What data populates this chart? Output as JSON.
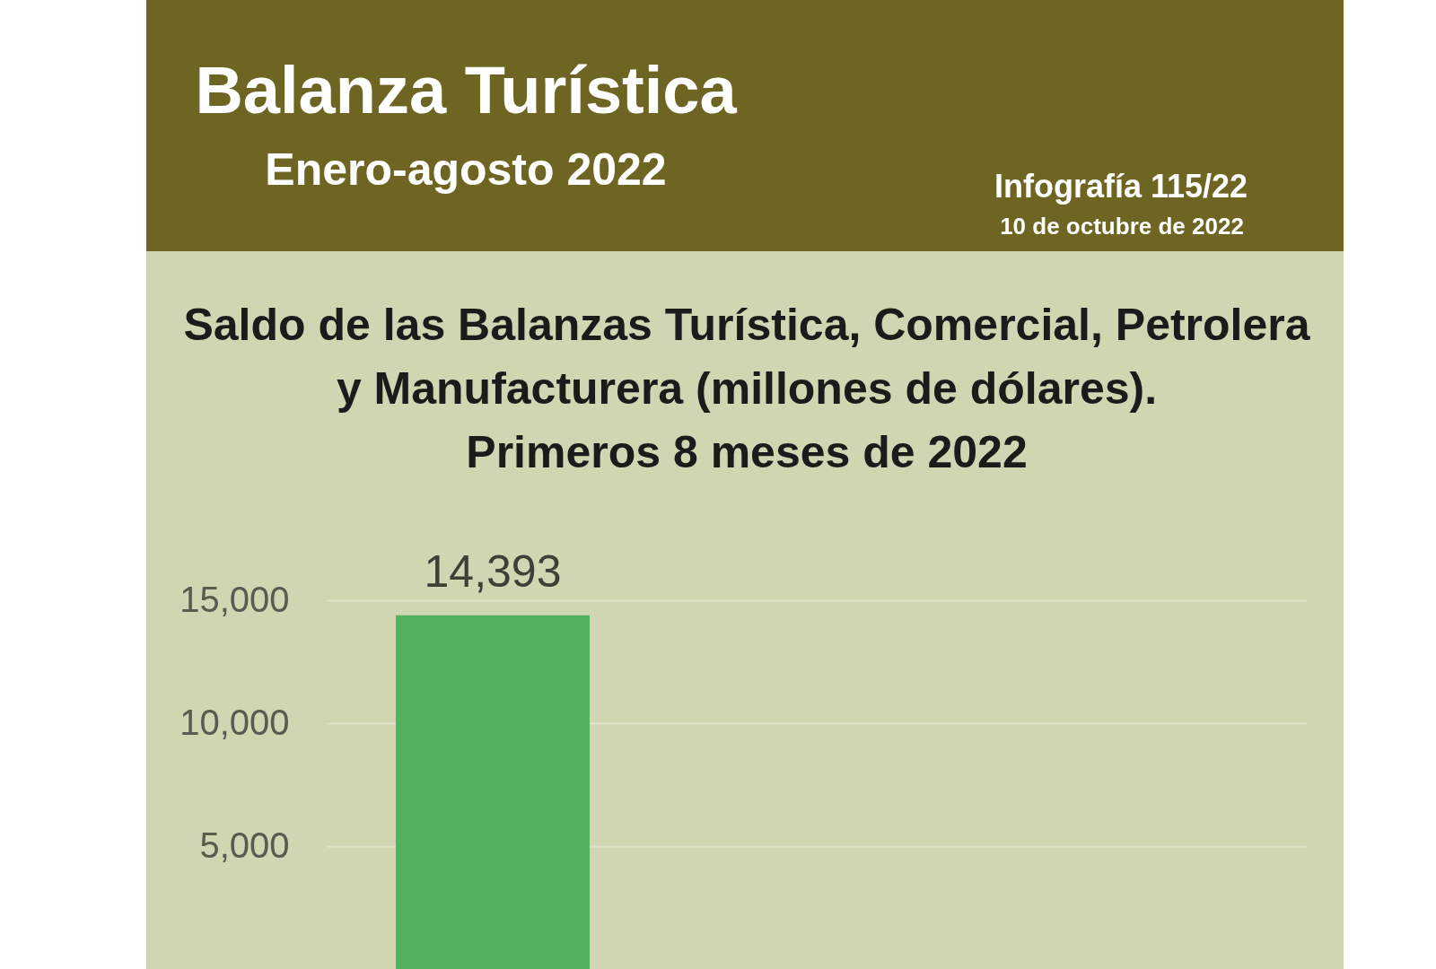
{
  "chart_data": {
    "type": "bar",
    "title": "Balanza Turística",
    "subtitle": "Enero-agosto 2022",
    "annotations": [
      "Infografía 115/22",
      "10 de octubre de 2022",
      "Saldo de las Balanzas Turística, Comercial, Petrolera y Manufacturera (millones de dólares).",
      "Primeros 8 meses de 2022"
    ],
    "categories": [
      null,
      null,
      null,
      null
    ],
    "values": [
      14393,
      null,
      null,
      null
    ],
    "value_labels": [
      "14,393",
      null,
      null,
      null
    ],
    "color": "#52b15c",
    "ylim": [
      0,
      15000
    ],
    "yticks": [
      {
        "value": 5000,
        "label": "5,000"
      },
      {
        "value": 10000,
        "label": "10,000"
      },
      {
        "value": 15000,
        "label": "15,000"
      }
    ],
    "grid": "y",
    "tick_labels": "y"
  }
}
